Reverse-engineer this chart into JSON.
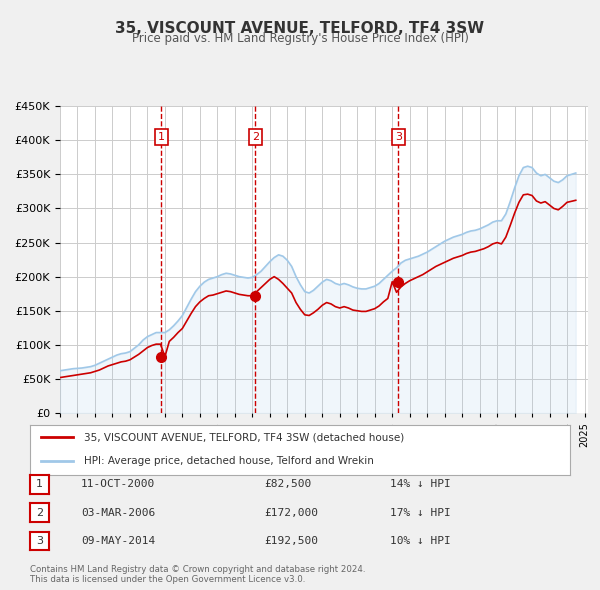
{
  "title": "35, VISCOUNT AVENUE, TELFORD, TF4 3SW",
  "subtitle": "Price paid vs. HM Land Registry's House Price Index (HPI)",
  "background_color": "#f0f0f0",
  "plot_bg_color": "#ffffff",
  "ylabel_color": "#333333",
  "hpi_color": "#a0c8e8",
  "price_color": "#cc0000",
  "vline_color": "#cc0000",
  "ylim": [
    0,
    450000
  ],
  "yticks": [
    0,
    50000,
    100000,
    150000,
    200000,
    250000,
    300000,
    350000,
    400000,
    450000
  ],
  "legend_label_price": "35, VISCOUNT AVENUE, TELFORD, TF4 3SW (detached house)",
  "legend_label_hpi": "HPI: Average price, detached house, Telford and Wrekin",
  "transactions": [
    {
      "num": 1,
      "date": "11-OCT-2000",
      "x": 2000.79,
      "price": 82500,
      "pct": "14%",
      "dir": "↓"
    },
    {
      "num": 2,
      "date": "03-MAR-2006",
      "x": 2006.17,
      "price": 172000,
      "pct": "17%",
      "dir": "↓"
    },
    {
      "num": 3,
      "date": "09-MAY-2014",
      "x": 2014.36,
      "price": 192500,
      "pct": "10%",
      "dir": "↓"
    }
  ],
  "footer": "Contains HM Land Registry data © Crown copyright and database right 2024.\nThis data is licensed under the Open Government Licence v3.0.",
  "hpi_data": {
    "x": [
      1995.0,
      1995.25,
      1995.5,
      1995.75,
      1996.0,
      1996.25,
      1996.5,
      1996.75,
      1997.0,
      1997.25,
      1997.5,
      1997.75,
      1998.0,
      1998.25,
      1998.5,
      1998.75,
      1999.0,
      1999.25,
      1999.5,
      1999.75,
      2000.0,
      2000.25,
      2000.5,
      2000.75,
      2001.0,
      2001.25,
      2001.5,
      2001.75,
      2002.0,
      2002.25,
      2002.5,
      2002.75,
      2003.0,
      2003.25,
      2003.5,
      2003.75,
      2004.0,
      2004.25,
      2004.5,
      2004.75,
      2005.0,
      2005.25,
      2005.5,
      2005.75,
      2006.0,
      2006.25,
      2006.5,
      2006.75,
      2007.0,
      2007.25,
      2007.5,
      2007.75,
      2008.0,
      2008.25,
      2008.5,
      2008.75,
      2009.0,
      2009.25,
      2009.5,
      2009.75,
      2010.0,
      2010.25,
      2010.5,
      2010.75,
      2011.0,
      2011.25,
      2011.5,
      2011.75,
      2012.0,
      2012.25,
      2012.5,
      2012.75,
      2013.0,
      2013.25,
      2013.5,
      2013.75,
      2014.0,
      2014.25,
      2014.5,
      2014.75,
      2015.0,
      2015.25,
      2015.5,
      2015.75,
      2016.0,
      2016.25,
      2016.5,
      2016.75,
      2017.0,
      2017.25,
      2017.5,
      2017.75,
      2018.0,
      2018.25,
      2018.5,
      2018.75,
      2019.0,
      2019.25,
      2019.5,
      2019.75,
      2020.0,
      2020.25,
      2020.5,
      2020.75,
      2021.0,
      2021.25,
      2021.5,
      2021.75,
      2022.0,
      2022.25,
      2022.5,
      2022.75,
      2023.0,
      2023.25,
      2023.5,
      2023.75,
      2024.0,
      2024.5
    ],
    "y": [
      62000,
      63000,
      64000,
      65000,
      65500,
      66000,
      67000,
      68000,
      70000,
      73000,
      76000,
      79000,
      82000,
      85000,
      87000,
      88000,
      90000,
      95000,
      100000,
      107000,
      112000,
      115000,
      118000,
      118000,
      118000,
      122000,
      128000,
      135000,
      143000,
      155000,
      167000,
      178000,
      186000,
      192000,
      196000,
      198000,
      200000,
      203000,
      205000,
      204000,
      202000,
      200000,
      199000,
      198000,
      199000,
      203000,
      208000,
      215000,
      222000,
      228000,
      232000,
      230000,
      224000,
      215000,
      200000,
      188000,
      178000,
      176000,
      180000,
      186000,
      192000,
      196000,
      194000,
      190000,
      188000,
      190000,
      188000,
      185000,
      183000,
      182000,
      182000,
      184000,
      186000,
      190000,
      196000,
      202000,
      208000,
      213000,
      220000,
      224000,
      226000,
      228000,
      230000,
      233000,
      236000,
      240000,
      244000,
      248000,
      252000,
      255000,
      258000,
      260000,
      262000,
      265000,
      267000,
      268000,
      270000,
      273000,
      276000,
      280000,
      282000,
      282000,
      292000,
      310000,
      330000,
      348000,
      360000,
      362000,
      360000,
      352000,
      348000,
      350000,
      345000,
      340000,
      338000,
      342000,
      348000,
      352000
    ]
  },
  "price_series_data": {
    "x": [
      1995.0,
      1995.25,
      1995.5,
      1995.75,
      1996.0,
      1996.25,
      1996.5,
      1996.75,
      1997.0,
      1997.25,
      1997.5,
      1997.75,
      1998.0,
      1998.25,
      1998.5,
      1998.75,
      1999.0,
      1999.25,
      1999.5,
      1999.75,
      2000.0,
      2000.25,
      2000.5,
      2000.75,
      2001.0,
      2001.25,
      2001.5,
      2001.75,
      2002.0,
      2002.25,
      2002.5,
      2002.75,
      2003.0,
      2003.25,
      2003.5,
      2003.75,
      2004.0,
      2004.25,
      2004.5,
      2004.75,
      2005.0,
      2005.25,
      2005.5,
      2005.75,
      2006.0,
      2006.25,
      2006.5,
      2006.75,
      2007.0,
      2007.25,
      2007.5,
      2007.75,
      2008.0,
      2008.25,
      2008.5,
      2008.75,
      2009.0,
      2009.25,
      2009.5,
      2009.75,
      2010.0,
      2010.25,
      2010.5,
      2010.75,
      2011.0,
      2011.25,
      2011.5,
      2011.75,
      2012.0,
      2012.25,
      2012.5,
      2012.75,
      2013.0,
      2013.25,
      2013.5,
      2013.75,
      2014.0,
      2014.25,
      2014.5,
      2014.75,
      2015.0,
      2015.25,
      2015.5,
      2015.75,
      2016.0,
      2016.25,
      2016.5,
      2016.75,
      2017.0,
      2017.25,
      2017.5,
      2017.75,
      2018.0,
      2018.25,
      2018.5,
      2018.75,
      2019.0,
      2019.25,
      2019.5,
      2019.75,
      2020.0,
      2020.25,
      2020.5,
      2020.75,
      2021.0,
      2021.25,
      2021.5,
      2021.75,
      2022.0,
      2022.25,
      2022.5,
      2022.75,
      2023.0,
      2023.25,
      2023.5,
      2023.75,
      2024.0,
      2024.5
    ],
    "y": [
      52000,
      53000,
      54000,
      55000,
      56000,
      57000,
      58000,
      59000,
      61000,
      63000,
      66000,
      69000,
      71000,
      73000,
      75000,
      76000,
      78000,
      82000,
      86000,
      91000,
      96000,
      99000,
      101000,
      101000,
      82500,
      105000,
      111000,
      118000,
      124000,
      135000,
      146000,
      156000,
      163000,
      168000,
      172000,
      173000,
      175000,
      177000,
      179000,
      178000,
      176000,
      174000,
      173000,
      172000,
      172000,
      178000,
      184000,
      190000,
      196000,
      200000,
      196000,
      190000,
      183000,
      176000,
      162000,
      152000,
      144000,
      143000,
      147000,
      152000,
      158000,
      162000,
      160000,
      156000,
      154000,
      156000,
      154000,
      151000,
      150000,
      149000,
      149000,
      151000,
      153000,
      157000,
      163000,
      168000,
      192500,
      177000,
      185000,
      190000,
      194000,
      197000,
      200000,
      203000,
      207000,
      211000,
      215000,
      218000,
      221000,
      224000,
      227000,
      229000,
      231000,
      234000,
      236000,
      237000,
      239000,
      241000,
      244000,
      248000,
      250000,
      248000,
      258000,
      275000,
      293000,
      309000,
      320000,
      321000,
      319000,
      311000,
      308000,
      310000,
      305000,
      300000,
      298000,
      303000,
      309000,
      312000
    ]
  }
}
